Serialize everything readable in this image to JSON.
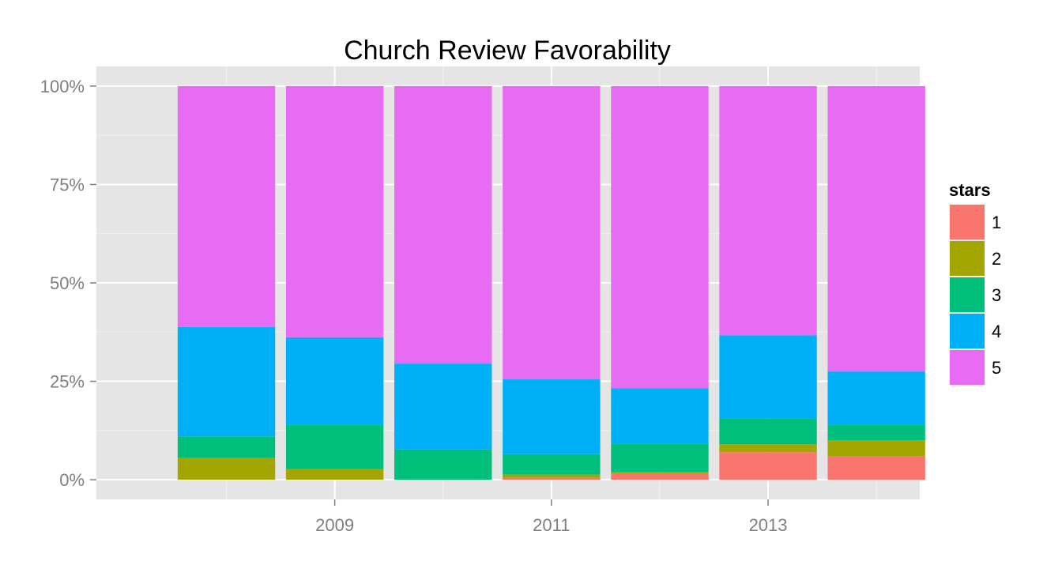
{
  "chart_data": {
    "type": "bar",
    "stacked": "percent",
    "title": "Church Review Favorability",
    "xlabel": "",
    "ylabel": "",
    "x": [
      2008,
      2009,
      2010,
      2011,
      2012,
      2013,
      2014
    ],
    "x_tick_labels": [
      "2009",
      "2011",
      "2013"
    ],
    "x_ticks": [
      2009,
      2011,
      2013
    ],
    "x_minor_ticks": [
      2008,
      2010,
      2012,
      2014
    ],
    "xlim": [
      2006.8,
      2014.4
    ],
    "ylim": [
      -0.05,
      1.05
    ],
    "y_ticks": [
      0,
      0.25,
      0.5,
      0.75,
      1.0
    ],
    "y_tick_labels": [
      "0%",
      "25%",
      "50%",
      "75%",
      "100%"
    ],
    "y_minor_ticks": [
      0.125,
      0.375,
      0.625,
      0.875
    ],
    "grid": true,
    "legend": {
      "title": "stars",
      "position": "right"
    },
    "series": [
      {
        "name": "1",
        "color": "#F8766D",
        "values": [
          0.0,
          0.0,
          0.0,
          0.005,
          0.015,
          0.07,
          0.06
        ]
      },
      {
        "name": "2",
        "color": "#A3A500",
        "values": [
          0.055,
          0.027,
          0.0,
          0.008,
          0.005,
          0.02,
          0.04
        ]
      },
      {
        "name": "3",
        "color": "#00BF7D",
        "values": [
          0.055,
          0.113,
          0.077,
          0.052,
          0.072,
          0.065,
          0.04
        ]
      },
      {
        "name": "4",
        "color": "#00B0F6",
        "values": [
          0.278,
          0.222,
          0.218,
          0.19,
          0.14,
          0.212,
          0.135
        ]
      },
      {
        "name": "5",
        "color": "#E76BF3",
        "values": [
          0.612,
          0.638,
          0.705,
          0.745,
          0.768,
          0.633,
          0.725
        ]
      }
    ],
    "colors": {
      "panel": "#E5E5E5",
      "grid_major": "#FFFFFF",
      "grid_minor": "#F2F2F2",
      "tick_text": "#7F7F7F"
    }
  }
}
